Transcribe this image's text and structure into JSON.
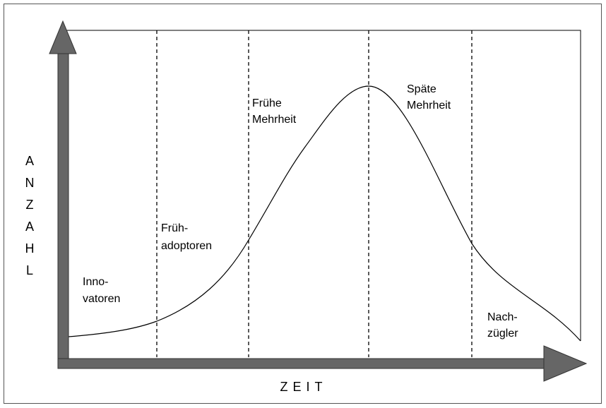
{
  "y_axis_label": "ANZAHL",
  "x_axis_label": "ZEIT",
  "segments": [
    {
      "lines": [
        "Inno-",
        "vatoren"
      ]
    },
    {
      "lines": [
        "Früh-",
        "adoptoren"
      ]
    },
    {
      "lines": [
        "Frühe",
        "Mehrheit"
      ]
    },
    {
      "lines": [
        "Späte",
        "Mehrheit"
      ]
    },
    {
      "lines": [
        "Nach-",
        "zügler"
      ]
    }
  ]
}
